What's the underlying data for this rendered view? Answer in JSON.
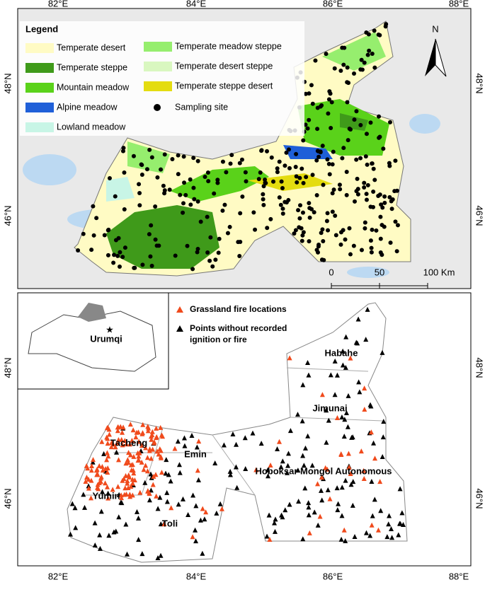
{
  "top_map": {
    "lon_labels": [
      "82°E",
      "84°E",
      "86°E",
      "88°E"
    ],
    "lat_labels": [
      "48°N",
      "46°N"
    ],
    "legend": {
      "title": "Legend",
      "items": [
        {
          "label": "Temperate desert",
          "color": "#fffbc4"
        },
        {
          "label": "Temperate steppe",
          "color": "#3f9a1a"
        },
        {
          "label": "Mountain meadow",
          "color": "#5ad21a"
        },
        {
          "label": "Alpine meadow",
          "color": "#1f5fd8"
        },
        {
          "label": "Lowland meadow",
          "color": "#c8f5e6"
        },
        {
          "label": "Temperate meadow steppe",
          "color": "#96ee6e"
        },
        {
          "label": "Temperate desert steppe",
          "color": "#d9f7c0"
        },
        {
          "label": "Temperate steppe desert",
          "color": "#e4dc10"
        }
      ],
      "site": {
        "label": "Sampling site",
        "color": "#000000"
      }
    },
    "north": "N",
    "scale": [
      "0",
      "50",
      "100 Km"
    ]
  },
  "bottom_map": {
    "lon_labels": [
      "82°E",
      "84°E",
      "86°E",
      "88°E"
    ],
    "lat_labels": [
      "48°N",
      "46°N"
    ],
    "inset_label": "Urumqi",
    "legend": [
      {
        "label": "Grassland fire locations",
        "color": "#f04a1c"
      },
      {
        "label": "Points without recorded ignition or fire",
        "color": "#000000"
      }
    ],
    "places": [
      "Habahe",
      "Jimunai",
      "Tacheng",
      "Emin",
      "Hoboksar Mongol Autonomous",
      "Yumin",
      "Toli"
    ]
  }
}
